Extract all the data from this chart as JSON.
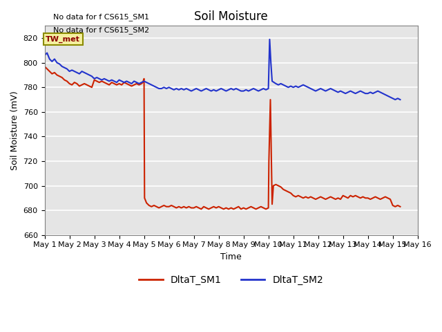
{
  "title": "Soil Moisture",
  "xlabel": "Time",
  "ylabel": "Soil Moisture (mV)",
  "ylim": [
    660,
    830
  ],
  "yticks": [
    660,
    680,
    700,
    720,
    740,
    760,
    780,
    800,
    820
  ],
  "background_color": "#e5e5e5",
  "text_annotations": [
    "No data for f CS615_SM1",
    "No data for f CS615_SM2"
  ],
  "box_label": "TW_met",
  "legend_entries": [
    "DltaT_SM1",
    "DltaT_SM2"
  ],
  "line_colors": [
    "#cc2200",
    "#2233cc"
  ],
  "sm1_x": [
    1.0,
    1.1,
    1.2,
    1.3,
    1.4,
    1.5,
    1.6,
    1.7,
    1.8,
    1.9,
    2.0,
    2.1,
    2.2,
    2.3,
    2.4,
    2.5,
    2.6,
    2.7,
    2.8,
    2.9,
    3.0,
    3.1,
    3.2,
    3.3,
    3.4,
    3.5,
    3.6,
    3.7,
    3.8,
    3.9,
    4.0,
    4.1,
    4.2,
    4.3,
    4.4,
    4.5,
    4.6,
    4.7,
    4.8,
    4.9,
    4.95,
    5.0,
    5.02,
    5.1,
    5.2,
    5.3,
    5.4,
    5.5,
    5.6,
    5.7,
    5.8,
    5.9,
    6.0,
    6.1,
    6.2,
    6.3,
    6.4,
    6.5,
    6.6,
    6.7,
    6.8,
    6.9,
    7.0,
    7.1,
    7.2,
    7.3,
    7.4,
    7.5,
    7.6,
    7.7,
    7.8,
    7.9,
    8.0,
    8.1,
    8.2,
    8.3,
    8.4,
    8.5,
    8.6,
    8.7,
    8.8,
    8.9,
    9.0,
    9.1,
    9.2,
    9.3,
    9.4,
    9.5,
    9.6,
    9.7,
    9.8,
    9.9,
    10.0,
    10.02,
    10.08,
    10.15,
    10.2,
    10.3,
    10.4,
    10.5,
    10.6,
    10.7,
    10.8,
    10.9,
    11.0,
    11.1,
    11.2,
    11.3,
    11.4,
    11.5,
    11.6,
    11.7,
    11.8,
    11.9,
    12.0,
    12.1,
    12.2,
    12.3,
    12.4,
    12.5,
    12.6,
    12.7,
    12.8,
    12.9,
    13.0,
    13.1,
    13.2,
    13.3,
    13.4,
    13.5,
    13.6,
    13.7,
    13.8,
    13.9,
    14.0,
    14.1,
    14.2,
    14.3,
    14.4,
    14.5,
    14.6,
    14.7,
    14.8,
    14.9,
    15.0,
    15.1,
    15.2,
    15.3
  ],
  "sm1_y": [
    797,
    795,
    793,
    791,
    792,
    790,
    789,
    788,
    786,
    785,
    783,
    782,
    784,
    783,
    781,
    782,
    783,
    782,
    781,
    780,
    786,
    785,
    784,
    785,
    784,
    783,
    782,
    784,
    783,
    782,
    783,
    782,
    784,
    783,
    782,
    781,
    782,
    783,
    782,
    783,
    784,
    787,
    690,
    686,
    684,
    683,
    684,
    683,
    682,
    683,
    684,
    683,
    683,
    684,
    683,
    682,
    683,
    682,
    683,
    682,
    683,
    682,
    682,
    683,
    682,
    681,
    683,
    682,
    681,
    682,
    683,
    682,
    683,
    682,
    681,
    682,
    681,
    682,
    681,
    682,
    683,
    681,
    682,
    681,
    682,
    683,
    682,
    681,
    682,
    683,
    682,
    681,
    682,
    720,
    770,
    685,
    700,
    701,
    700,
    699,
    697,
    696,
    695,
    694,
    692,
    691,
    692,
    691,
    690,
    691,
    690,
    691,
    690,
    689,
    690,
    691,
    690,
    689,
    690,
    691,
    690,
    689,
    690,
    689,
    692,
    691,
    690,
    692,
    691,
    692,
    691,
    690,
    691,
    690,
    690,
    689,
    690,
    691,
    690,
    689,
    690,
    691,
    690,
    689,
    684,
    683,
    684,
    683
  ],
  "sm2_x": [
    1.0,
    1.1,
    1.2,
    1.3,
    1.4,
    1.5,
    1.6,
    1.7,
    1.8,
    1.9,
    2.0,
    2.1,
    2.2,
    2.3,
    2.4,
    2.5,
    2.6,
    2.7,
    2.8,
    2.9,
    3.0,
    3.1,
    3.2,
    3.3,
    3.4,
    3.5,
    3.6,
    3.7,
    3.8,
    3.9,
    4.0,
    4.1,
    4.2,
    4.3,
    4.4,
    4.5,
    4.6,
    4.7,
    4.8,
    4.9,
    5.0,
    5.1,
    5.2,
    5.3,
    5.4,
    5.5,
    5.6,
    5.7,
    5.8,
    5.9,
    6.0,
    6.1,
    6.2,
    6.3,
    6.4,
    6.5,
    6.6,
    6.7,
    6.8,
    6.9,
    7.0,
    7.1,
    7.2,
    7.3,
    7.4,
    7.5,
    7.6,
    7.7,
    7.8,
    7.9,
    8.0,
    8.1,
    8.2,
    8.3,
    8.4,
    8.5,
    8.6,
    8.7,
    8.8,
    8.9,
    9.0,
    9.1,
    9.2,
    9.3,
    9.4,
    9.5,
    9.6,
    9.7,
    9.8,
    9.9,
    10.0,
    10.05,
    10.1,
    10.15,
    10.3,
    10.4,
    10.5,
    10.6,
    10.7,
    10.8,
    10.9,
    11.0,
    11.1,
    11.2,
    11.3,
    11.4,
    11.5,
    11.6,
    11.7,
    11.8,
    11.9,
    12.0,
    12.1,
    12.2,
    12.3,
    12.4,
    12.5,
    12.6,
    12.7,
    12.8,
    12.9,
    13.0,
    13.1,
    13.2,
    13.3,
    13.4,
    13.5,
    13.6,
    13.7,
    13.8,
    13.9,
    14.0,
    14.1,
    14.2,
    14.3,
    14.4,
    14.5,
    14.6,
    14.7,
    14.8,
    14.9,
    15.0,
    15.1,
    15.2,
    15.3
  ],
  "sm2_y": [
    806,
    808,
    803,
    801,
    803,
    800,
    799,
    797,
    796,
    795,
    793,
    794,
    793,
    792,
    791,
    793,
    792,
    791,
    790,
    789,
    787,
    788,
    787,
    786,
    787,
    786,
    785,
    786,
    785,
    784,
    786,
    785,
    784,
    785,
    784,
    783,
    785,
    784,
    783,
    784,
    785,
    784,
    783,
    782,
    781,
    780,
    779,
    779,
    780,
    779,
    780,
    779,
    778,
    779,
    778,
    779,
    778,
    779,
    778,
    777,
    778,
    779,
    778,
    777,
    778,
    779,
    778,
    777,
    778,
    777,
    778,
    779,
    778,
    777,
    778,
    779,
    778,
    779,
    778,
    777,
    777,
    778,
    777,
    778,
    779,
    778,
    777,
    778,
    779,
    778,
    779,
    819,
    800,
    785,
    783,
    782,
    783,
    782,
    781,
    780,
    781,
    780,
    781,
    780,
    781,
    782,
    781,
    780,
    779,
    778,
    777,
    778,
    779,
    778,
    777,
    778,
    779,
    778,
    777,
    776,
    777,
    776,
    775,
    776,
    777,
    776,
    775,
    776,
    777,
    776,
    775,
    775,
    776,
    775,
    776,
    777,
    776,
    775,
    774,
    773,
    772,
    771,
    770,
    771,
    770
  ]
}
